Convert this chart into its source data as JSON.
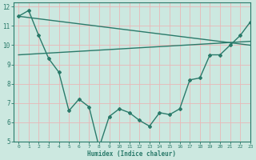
{
  "line1_x": [
    0,
    1,
    2,
    3,
    4,
    5,
    6,
    7,
    8,
    9,
    10,
    11,
    12,
    13,
    14,
    15,
    16,
    17,
    18,
    19,
    20,
    21,
    22,
    23
  ],
  "line1_y": [
    11.5,
    11.8,
    10.5,
    9.3,
    8.6,
    6.6,
    7.2,
    6.8,
    4.7,
    6.3,
    6.7,
    6.5,
    6.1,
    5.8,
    6.5,
    6.4,
    6.7,
    8.2,
    8.3,
    9.5,
    9.5,
    10.0,
    10.5,
    11.2
  ],
  "line2_x": [
    0,
    23
  ],
  "line2_y": [
    11.5,
    10.0
  ],
  "line3_x": [
    0,
    23
  ],
  "line3_y": [
    9.5,
    10.2
  ],
  "color": "#2a7a6a",
  "bg_color": "#cce8e0",
  "grid_color": "#b8d8d0",
  "xlabel": "Humidex (Indice chaleur)",
  "xlim": [
    -0.5,
    23
  ],
  "ylim": [
    5,
    12.2
  ],
  "yticks": [
    5,
    6,
    7,
    8,
    9,
    10,
    11,
    12
  ],
  "xticks": [
    0,
    1,
    2,
    3,
    4,
    5,
    6,
    7,
    8,
    9,
    10,
    11,
    12,
    13,
    14,
    15,
    16,
    17,
    18,
    19,
    20,
    21,
    22,
    23
  ]
}
